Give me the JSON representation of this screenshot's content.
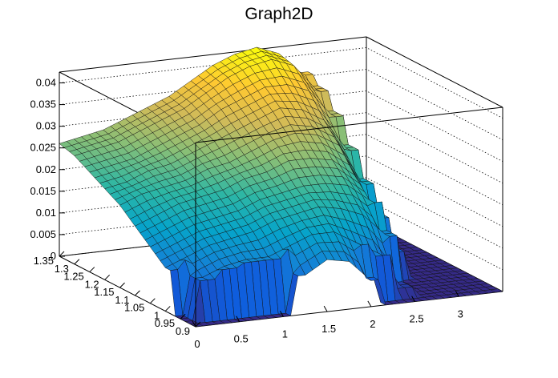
{
  "chart_data": {
    "type": "surface",
    "title": "Graph2D",
    "xlabel": "",
    "ylabel": "",
    "zlabel": "",
    "xlim": [
      0,
      3.5
    ],
    "ylim": [
      0.9,
      1.35
    ],
    "zlim": [
      0,
      0.0425
    ],
    "x_ticks": [
      "0",
      "0.5",
      "1",
      "1.5",
      "2",
      "2.5",
      "3"
    ],
    "y_ticks": [
      "0.9",
      "0.95",
      "1",
      "1.05",
      "1.1",
      "1.15",
      "1.2",
      "1.25",
      "1.3",
      "1.35"
    ],
    "z_ticks": [
      "0",
      "0.005",
      "0.01",
      "0.015",
      "0.02",
      "0.025",
      "0.03",
      "0.035",
      "0.04"
    ],
    "grid": true,
    "palette": [
      "#352a87",
      "#0f5cdd",
      "#1481d6",
      "#06a4ca",
      "#2eb7a4",
      "#87bf77",
      "#d1bb59",
      "#fec832",
      "#f9fb0e"
    ],
    "surface_x": [
      0,
      0.25,
      0.5,
      0.75,
      1,
      1.25,
      1.5,
      1.75,
      2,
      2.25,
      2.5,
      2.75,
      3,
      3.25,
      3.5
    ],
    "surface_y": [
      0.9,
      0.95,
      1.0,
      1.05,
      1.1,
      1.15,
      1.2,
      1.25,
      1.3,
      1.35
    ],
    "surface_z": [
      [
        0,
        0,
        0,
        0,
        0,
        0.009,
        0.012,
        0.011,
        0.006,
        0,
        0,
        0,
        0,
        0,
        0
      ],
      [
        0,
        0.009,
        0.011,
        0.012,
        0.012,
        0.014,
        0.016,
        0.016,
        0.013,
        0.01,
        0.002,
        0,
        0,
        0,
        0
      ],
      [
        0.01,
        0.012,
        0.014,
        0.015,
        0.016,
        0.018,
        0.019,
        0.02,
        0.019,
        0.017,
        0.012,
        0,
        0,
        0,
        0
      ],
      [
        0.013,
        0.015,
        0.017,
        0.018,
        0.019,
        0.021,
        0.022,
        0.023,
        0.023,
        0.022,
        0.018,
        0.006,
        0,
        0,
        0
      ],
      [
        0.016,
        0.018,
        0.02,
        0.021,
        0.022,
        0.024,
        0.025,
        0.027,
        0.027,
        0.026,
        0.022,
        0.012,
        0,
        0,
        0
      ],
      [
        0.019,
        0.021,
        0.022,
        0.023,
        0.025,
        0.026,
        0.028,
        0.03,
        0.031,
        0.03,
        0.027,
        0.018,
        0,
        0,
        0
      ],
      [
        0.021,
        0.022,
        0.024,
        0.025,
        0.027,
        0.029,
        0.031,
        0.033,
        0.035,
        0.034,
        0.031,
        0.024,
        0,
        0,
        0
      ],
      [
        0.023,
        0.024,
        0.025,
        0.027,
        0.029,
        0.031,
        0.034,
        0.036,
        0.038,
        0.038,
        0.036,
        0.03,
        0,
        0,
        0
      ],
      [
        0.025,
        0.026,
        0.027,
        0.029,
        0.031,
        0.033,
        0.036,
        0.039,
        0.041,
        0.042,
        0.04,
        0.034,
        0,
        0,
        0
      ],
      [
        0.026,
        0.027,
        0.028,
        0.03,
        0.032,
        0.034,
        0.037,
        0.04,
        0.042,
        0.043,
        0.041,
        0.036,
        0,
        0,
        0
      ]
    ]
  }
}
